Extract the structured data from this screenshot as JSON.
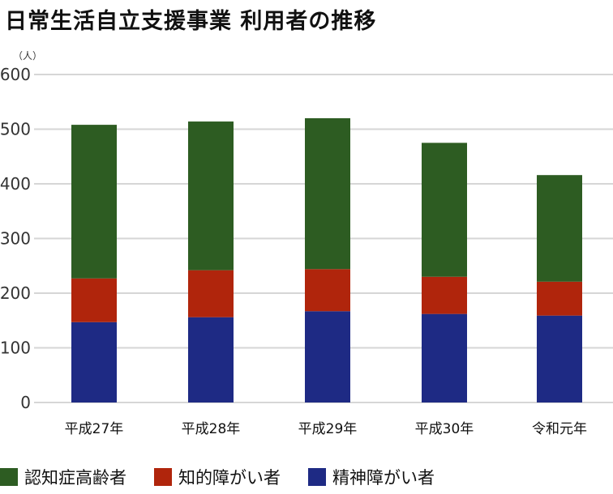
{
  "chart_data": {
    "type": "bar",
    "stacked": true,
    "title": "日常生活自立支援事業 利用者の推移",
    "ylabel": "（人）",
    "xlabel": "",
    "ylim": [
      0,
      600
    ],
    "yticks": [
      0,
      100,
      200,
      300,
      400,
      500,
      600
    ],
    "grid": true,
    "legend_position": "bottom",
    "categories": [
      "平成27年",
      "平成28年",
      "平成29年",
      "平成30年",
      "令和元年"
    ],
    "series": [
      {
        "name": "精神障がい者",
        "color": "#1e2a84",
        "values": [
          147,
          156,
          167,
          162,
          159
        ]
      },
      {
        "name": "知的障がい者",
        "color": "#b0250c",
        "values": [
          80,
          86,
          77,
          68,
          62
        ]
      },
      {
        "name": "認知症高齢者",
        "color": "#2d5c22",
        "values": [
          281,
          272,
          276,
          245,
          195
        ]
      }
    ],
    "legend_order": [
      2,
      1,
      0
    ]
  }
}
